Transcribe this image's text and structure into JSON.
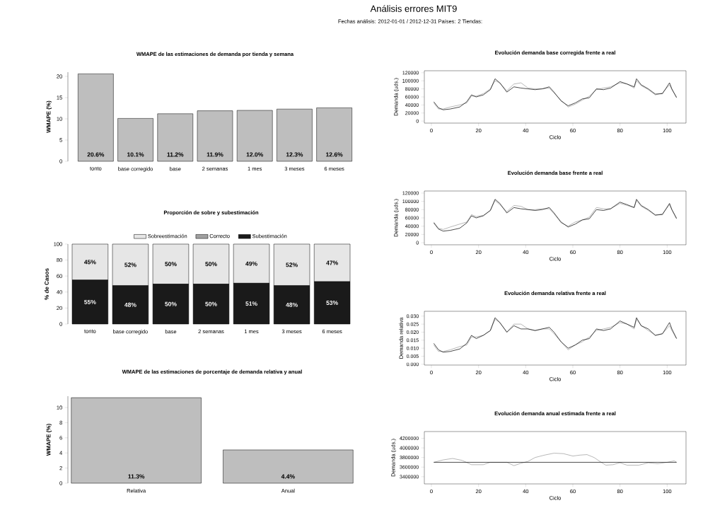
{
  "chart_data": [
    {
      "type": "other",
      "title": "Análisis errores MIT9",
      "subtitle": "Fechas análisis: 2012-01-01 / 2012-12-31 Países: 2 Tiendas:"
    },
    {
      "type": "bar",
      "title": "WMAPE de las estimaciones de demanda por tienda y semana",
      "ylabel": "WMAPE (%)",
      "categories": [
        "tonto",
        "base corregido",
        "base",
        "2 semanas",
        "1 mes",
        "3 meses",
        "6 meses"
      ],
      "values": [
        20.6,
        10.1,
        11.2,
        11.9,
        12.0,
        12.3,
        12.6
      ],
      "value_labels": [
        "20.6%",
        "10.1%",
        "11.2%",
        "11.9%",
        "12.0%",
        "12.3%",
        "12.6%"
      ],
      "color": "#bebebe",
      "ylim": [
        0,
        21
      ],
      "yticks": [
        0,
        5,
        10,
        15,
        20
      ]
    },
    {
      "type": "bar",
      "title": "Proporción de sobre y subestimación",
      "ylabel": "% de Casos",
      "stacked": true,
      "legend": "top",
      "categories": [
        "tonto",
        "base corregido",
        "base",
        "2 semanas",
        "1 mes",
        "3 meses",
        "6 meses"
      ],
      "series": [
        {
          "name": "Subestimación",
          "color": "#1a1a1a",
          "values": [
            55,
            48,
            50,
            50,
            51,
            48,
            53
          ],
          "value_labels": [
            "55%",
            "48%",
            "50%",
            "50%",
            "51%",
            "48%",
            "53%"
          ]
        },
        {
          "name": "Correcto",
          "color": "#a0a0a0",
          "values": [
            0,
            0,
            0,
            0,
            0,
            0,
            0
          ]
        },
        {
          "name": "Sobreestimación",
          "color": "#e6e6e6",
          "values": [
            45,
            52,
            50,
            50,
            49,
            52,
            47
          ],
          "value_labels": [
            "45%",
            "52%",
            "50%",
            "50%",
            "49%",
            "52%",
            "47%"
          ]
        }
      ],
      "ylim": [
        0,
        100
      ],
      "yticks": [
        0,
        20,
        40,
        60,
        80,
        100
      ]
    },
    {
      "type": "bar",
      "title": "WMAPE de las estimaciones de porcentaje de demanda relativa y anual",
      "ylabel": "WMAPE (%)",
      "categories": [
        "Relativa",
        "Anual"
      ],
      "values": [
        11.3,
        4.4
      ],
      "value_labels": [
        "11.3%",
        "4.4%"
      ],
      "color": "#bebebe",
      "ylim": [
        0,
        11.5
      ],
      "yticks": [
        0,
        2,
        4,
        6,
        8,
        10
      ]
    },
    {
      "type": "line",
      "title": "Evolución demanda base corregida frente a real",
      "xlabel": "Ciclo",
      "ylabel": "Demanda (uds.)",
      "x": [
        1,
        3,
        5,
        8,
        12,
        15,
        17,
        19,
        22,
        25,
        27,
        29,
        32,
        35,
        38,
        41,
        44,
        47,
        50,
        52,
        55,
        58,
        61,
        64,
        67,
        70,
        73,
        76,
        80,
        83,
        86,
        87,
        89,
        92,
        95,
        98,
        101,
        102,
        104
      ],
      "series": [
        {
          "color": "#999999",
          "values": [
            45000,
            30000,
            30000,
            35000,
            40000,
            45000,
            62000,
            62000,
            68000,
            80000,
            100000,
            95000,
            75000,
            92000,
            95000,
            82000,
            80000,
            80000,
            82000,
            70000,
            52000,
            35000,
            42000,
            52000,
            62000,
            78000,
            82000,
            85000,
            95000,
            92000,
            82000,
            100000,
            88000,
            78000,
            65000,
            70000,
            90000,
            78000,
            60000
          ]
        },
        {
          "color": "#000000",
          "values": [
            48000,
            33000,
            28000,
            30000,
            35000,
            48000,
            65000,
            60000,
            65000,
            78000,
            105000,
            95000,
            72000,
            85000,
            82000,
            80000,
            78000,
            80000,
            85000,
            72000,
            50000,
            38000,
            45000,
            55000,
            58000,
            80000,
            78000,
            82000,
            98000,
            92000,
            85000,
            105000,
            90000,
            80000,
            67000,
            68000,
            95000,
            80000,
            58000
          ]
        }
      ],
      "xlim": [
        -3,
        108
      ],
      "xticks": [
        0,
        20,
        40,
        60,
        80,
        100
      ],
      "ylim": [
        -5000,
        125000
      ],
      "yticks": [
        0,
        20000,
        40000,
        60000,
        80000,
        100000,
        120000
      ]
    },
    {
      "type": "line",
      "title": "Evolución demanda base frente a real",
      "xlabel": "Ciclo",
      "ylabel": "Demanda (uds.)",
      "x": [
        1,
        3,
        5,
        8,
        12,
        15,
        17,
        19,
        22,
        25,
        27,
        29,
        32,
        35,
        38,
        41,
        44,
        47,
        50,
        52,
        55,
        58,
        61,
        64,
        67,
        70,
        73,
        76,
        80,
        83,
        86,
        87,
        89,
        92,
        95,
        98,
        101,
        102,
        104
      ],
      "series": [
        {
          "color": "#999999",
          "values": [
            50000,
            35000,
            32000,
            38000,
            45000,
            50000,
            68000,
            63000,
            66000,
            78000,
            102000,
            92000,
            75000,
            90000,
            88000,
            80000,
            80000,
            82000,
            82000,
            70000,
            48000,
            40000,
            50000,
            55000,
            62000,
            85000,
            82000,
            82000,
            95000,
            90000,
            85000,
            102000,
            88000,
            78000,
            66000,
            70000,
            92000,
            80000,
            60000
          ]
        },
        {
          "color": "#000000",
          "values": [
            48000,
            33000,
            28000,
            30000,
            35000,
            48000,
            65000,
            60000,
            65000,
            78000,
            105000,
            95000,
            72000,
            85000,
            82000,
            80000,
            78000,
            80000,
            85000,
            72000,
            50000,
            38000,
            45000,
            55000,
            58000,
            80000,
            78000,
            82000,
            98000,
            92000,
            85000,
            105000,
            90000,
            80000,
            67000,
            68000,
            95000,
            80000,
            58000
          ]
        }
      ],
      "xlim": [
        -3,
        108
      ],
      "xticks": [
        0,
        20,
        40,
        60,
        80,
        100
      ],
      "ylim": [
        -5000,
        125000
      ],
      "yticks": [
        0,
        20000,
        40000,
        60000,
        80000,
        100000,
        120000
      ]
    },
    {
      "type": "line",
      "title": "Evolución demanda relativa frente a real",
      "xlabel": "Ciclo",
      "ylabel": "Demanda relativa",
      "x": [
        1,
        3,
        5,
        8,
        12,
        15,
        17,
        19,
        22,
        25,
        27,
        29,
        32,
        35,
        38,
        41,
        44,
        47,
        50,
        52,
        55,
        58,
        61,
        64,
        67,
        70,
        73,
        76,
        80,
        83,
        86,
        87,
        89,
        92,
        95,
        98,
        101,
        102,
        104
      ],
      "series": [
        {
          "color": "#999999",
          "values": [
            0.012,
            0.008,
            0.008,
            0.009,
            0.011,
            0.012,
            0.017,
            0.017,
            0.018,
            0.021,
            0.028,
            0.026,
            0.02,
            0.025,
            0.025,
            0.022,
            0.021,
            0.022,
            0.022,
            0.019,
            0.014,
            0.009,
            0.012,
            0.014,
            0.017,
            0.021,
            0.022,
            0.023,
            0.026,
            0.025,
            0.022,
            0.028,
            0.024,
            0.021,
            0.018,
            0.019,
            0.024,
            0.021,
            0.016
          ]
        },
        {
          "color": "#000000",
          "values": [
            0.013,
            0.009,
            0.0075,
            0.008,
            0.0095,
            0.013,
            0.018,
            0.016,
            0.018,
            0.021,
            0.029,
            0.026,
            0.02,
            0.024,
            0.022,
            0.022,
            0.021,
            0.022,
            0.023,
            0.02,
            0.014,
            0.01,
            0.012,
            0.015,
            0.016,
            0.022,
            0.021,
            0.022,
            0.027,
            0.025,
            0.023,
            0.029,
            0.024,
            0.022,
            0.018,
            0.019,
            0.026,
            0.022,
            0.016
          ]
        }
      ],
      "xlim": [
        -3,
        108
      ],
      "xticks": [
        0,
        20,
        40,
        60,
        80,
        100
      ],
      "ylim": [
        -0.0005,
        0.033
      ],
      "yticks": [
        {
          "value": 0,
          "label": "0.000"
        },
        0.005,
        {
          "value": 0.01,
          "label": "0.010"
        },
        0.015,
        {
          "value": 0.02,
          "label": "0.020"
        },
        0.025,
        {
          "value": 0.03,
          "label": "0.030"
        }
      ]
    },
    {
      "type": "line",
      "title": "Evolución demanda anual estimada frente a real",
      "xlabel": "Ciclo",
      "ylabel": "Demanda (uds.)",
      "series": [
        {
          "color": "#999999",
          "x": [
            1,
            5,
            9,
            13,
            17,
            22,
            25,
            32,
            35,
            38,
            41,
            44,
            48,
            52,
            56,
            60,
            63,
            66,
            69,
            72,
            74,
            77,
            80,
            83,
            88,
            92,
            96,
            100,
            103,
            104
          ],
          "values": [
            3700000,
            3750000,
            3780000,
            3740000,
            3650000,
            3650000,
            3700000,
            3700000,
            3630000,
            3680000,
            3720000,
            3800000,
            3850000,
            3890000,
            3880000,
            3830000,
            3850000,
            3860000,
            3800000,
            3700000,
            3640000,
            3650000,
            3690000,
            3640000,
            3640000,
            3690000,
            3670000,
            3700000,
            3730000,
            3700000
          ]
        },
        {
          "color": "#000000",
          "x": [
            1,
            104
          ],
          "values": [
            3700000,
            3700000
          ]
        }
      ],
      "xlim": [
        -3,
        108
      ],
      "xticks": [
        0,
        20,
        40,
        60,
        80,
        100
      ],
      "ylim": [
        3250000,
        4340000
      ],
      "yticks": [
        3400000,
        3600000,
        3800000,
        4000000,
        4200000
      ]
    }
  ]
}
